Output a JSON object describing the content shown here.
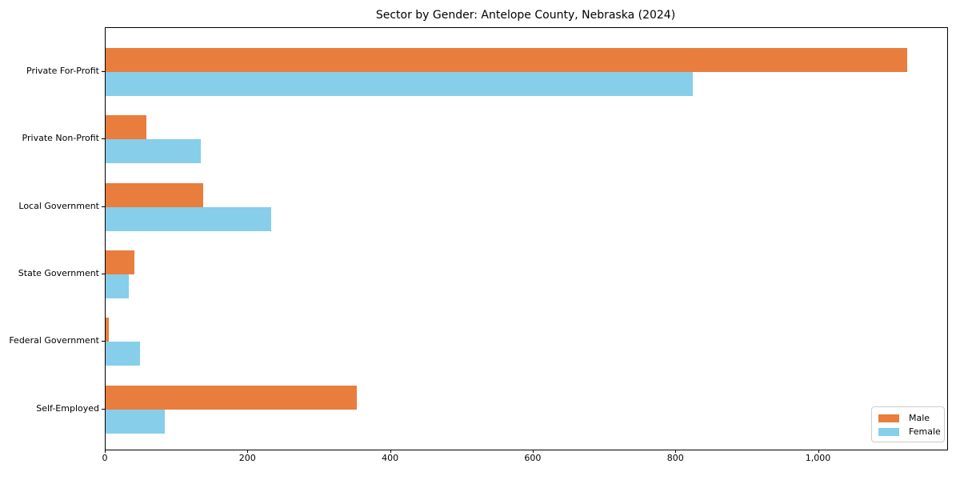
{
  "chart_data": {
    "type": "bar",
    "orientation": "horizontal",
    "title": "Sector by Gender: Antelope County, Nebraska (2024)",
    "categories": [
      "Private For-Profit",
      "Private Non-Profit",
      "Local Government",
      "State Government",
      "Federal Government",
      "Self-Employed"
    ],
    "series": [
      {
        "name": "Male",
        "color": "#e87d3e",
        "values": [
          1124,
          57,
          137,
          40,
          5,
          352
        ]
      },
      {
        "name": "Female",
        "color": "#87ceeb",
        "values": [
          823,
          133,
          232,
          33,
          48,
          83
        ]
      }
    ],
    "xlim": [
      0,
      1180
    ],
    "x_ticks": [
      0,
      200,
      400,
      600,
      800,
      1000
    ],
    "x_tick_labels": [
      "0",
      "200",
      "400",
      "600",
      "800",
      "1,000"
    ],
    "grid": false,
    "legend": {
      "position": "lower right"
    },
    "colors": {
      "spine": "#000000",
      "legend_border": "#cccccc",
      "background": "#ffffff"
    }
  }
}
